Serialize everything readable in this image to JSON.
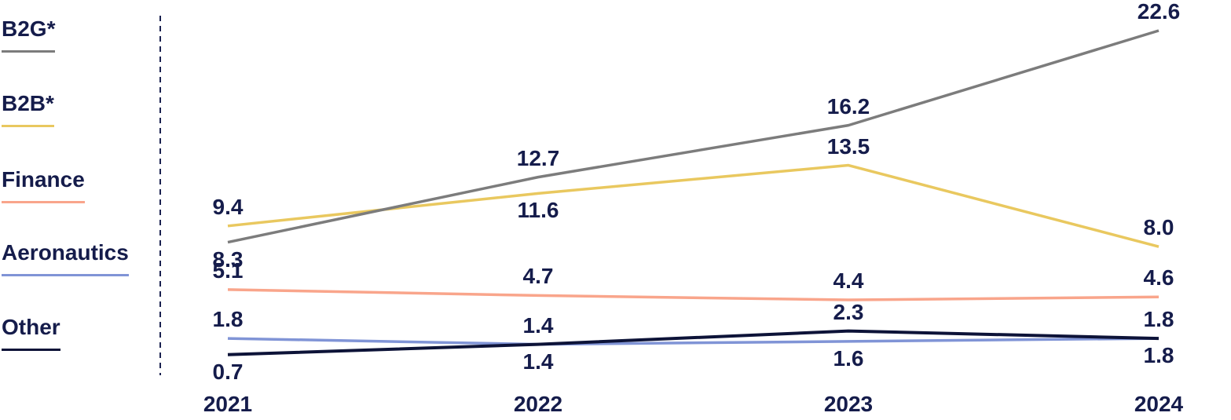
{
  "chart_data": {
    "type": "line",
    "categories": [
      "2021",
      "2022",
      "2023",
      "2024"
    ],
    "series": [
      {
        "name": "B2G*",
        "color": "#7c7c7c",
        "values": [
          8.3,
          12.7,
          16.2,
          22.6
        ],
        "label_side": [
          "below",
          "above",
          "above",
          "above"
        ]
      },
      {
        "name": "B2B*",
        "color": "#e9c85f",
        "values": [
          9.4,
          11.6,
          13.5,
          8.0
        ],
        "label_side": [
          "above",
          "below",
          "above",
          "above"
        ]
      },
      {
        "name": "Finance",
        "color": "#f9a58b",
        "values": [
          5.1,
          4.7,
          4.4,
          4.6
        ],
        "label_side": [
          "above",
          "above",
          "above",
          "above"
        ]
      },
      {
        "name": "Aeronautics",
        "color": "#8094d6",
        "values": [
          1.8,
          1.4,
          1.6,
          1.8
        ],
        "label_side": [
          "above",
          "above",
          "below",
          "above"
        ]
      },
      {
        "name": "Other",
        "color": "#0d1338",
        "values": [
          0.7,
          1.4,
          2.3,
          1.8
        ],
        "label_side": [
          "below",
          "below",
          "above",
          "below"
        ]
      }
    ],
    "title": "",
    "xlabel": "",
    "ylabel": "",
    "ylim": [
      0,
      24
    ],
    "grid": false,
    "legend_position": "left",
    "label_decimals": 1,
    "text_color": "#151c4b",
    "divider_color": "#1a2150"
  }
}
